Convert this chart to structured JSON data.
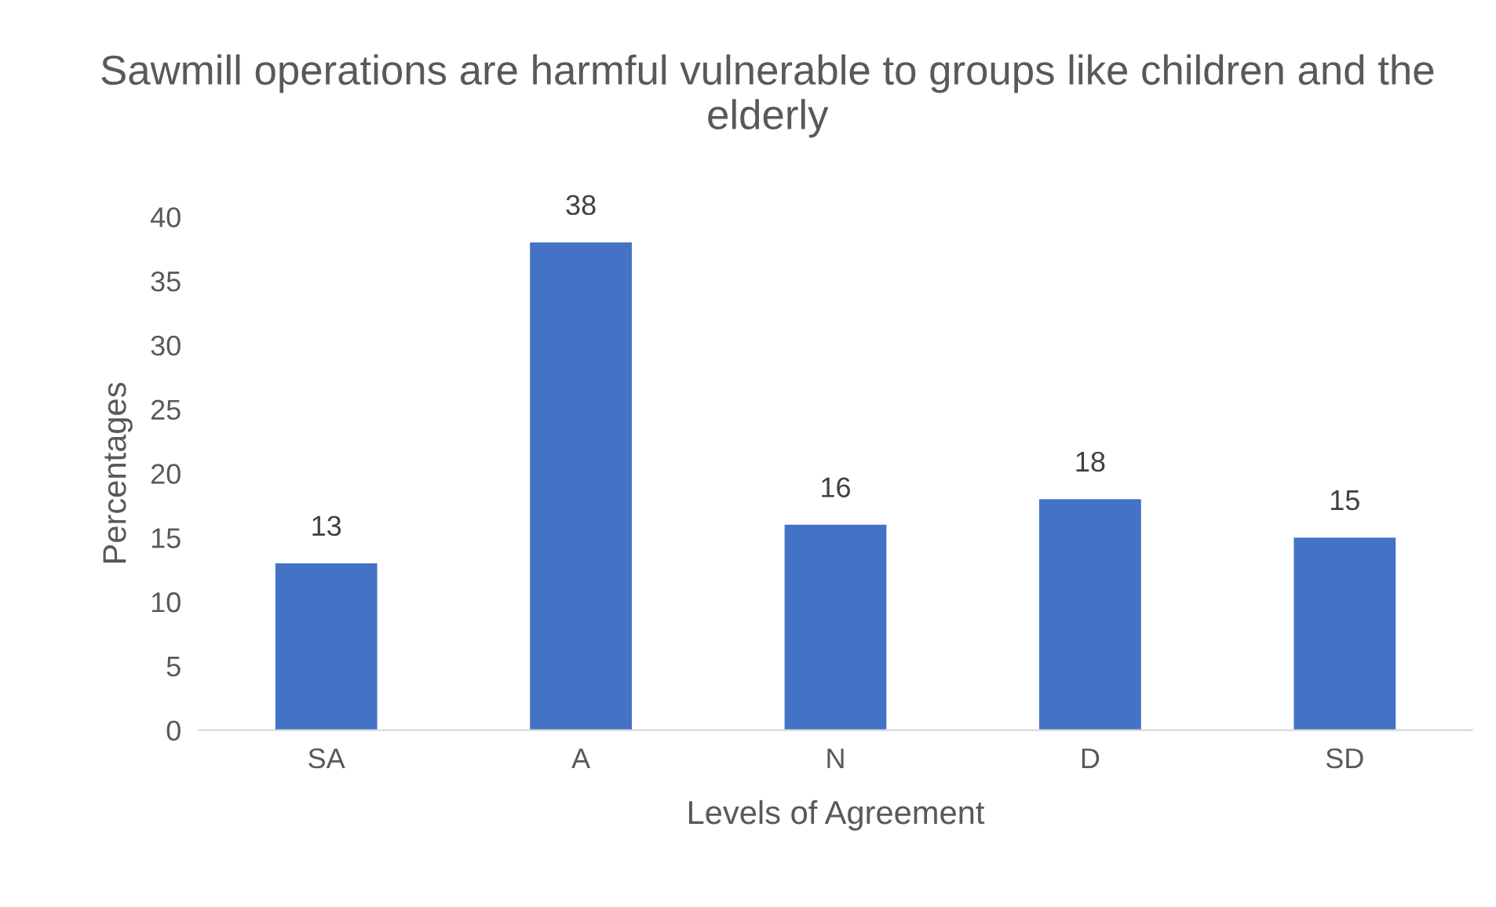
{
  "chart_data": {
    "type": "bar",
    "title": "Sawmill operations are harmful vulnerable to groups like children and the elderly",
    "xlabel": "Levels of Agreement",
    "ylabel": "Percentages",
    "categories": [
      "SA",
      "A",
      "N",
      "D",
      "SD"
    ],
    "values": [
      13,
      38,
      16,
      18,
      15
    ],
    "color": "#4472c4",
    "ylim": [
      0,
      40
    ],
    "yticks": [
      0,
      5,
      10,
      15,
      20,
      25,
      30,
      35,
      40
    ],
    "grid": false,
    "data_labels": true,
    "legend": false
  }
}
